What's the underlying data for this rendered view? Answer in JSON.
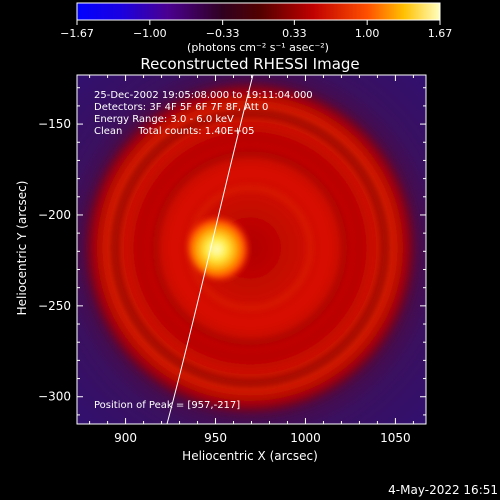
{
  "colorbar": {
    "ticks": [
      "-1.67",
      "-1.00",
      "-0.33",
      "0.33",
      "1.00",
      "1.67"
    ],
    "units": "(photons cm⁻² s⁻¹ asec⁻²)",
    "range": [
      -1.67,
      1.67
    ]
  },
  "chart_data": {
    "type": "heatmap",
    "title": "Reconstructed RHESSI Image",
    "xlabel": "Heliocentric X (arcsec)",
    "ylabel": "Heliocentric Y (arcsec)",
    "xlim": [
      873,
      1067
    ],
    "ylim": [
      -315,
      -123
    ],
    "x_ticks": [
      900,
      950,
      1000,
      1050
    ],
    "y_ticks": [
      -150,
      -200,
      -250,
      -300
    ],
    "peak": {
      "x": 957,
      "y": -217
    },
    "source_radius_arcsec": 15,
    "ring_radius_arcsec": 60,
    "info_lines": [
      "25-Dec-2002 19:05:08.000 to 19:11:04.000",
      "Detectors: 3F 4F 5F 6F 7F 8F, Att 0",
      "Energy Range: 3.0 - 6.0 keV",
      "Clean     Total counts: 1.40E+05"
    ],
    "peak_label": "Position of Peak = [957,-217]"
  },
  "footer": {
    "date": "4-May-2022 16:51"
  },
  "colors": {
    "background": "#000000",
    "axes": "#ffffff",
    "limb": "#ffffff"
  }
}
